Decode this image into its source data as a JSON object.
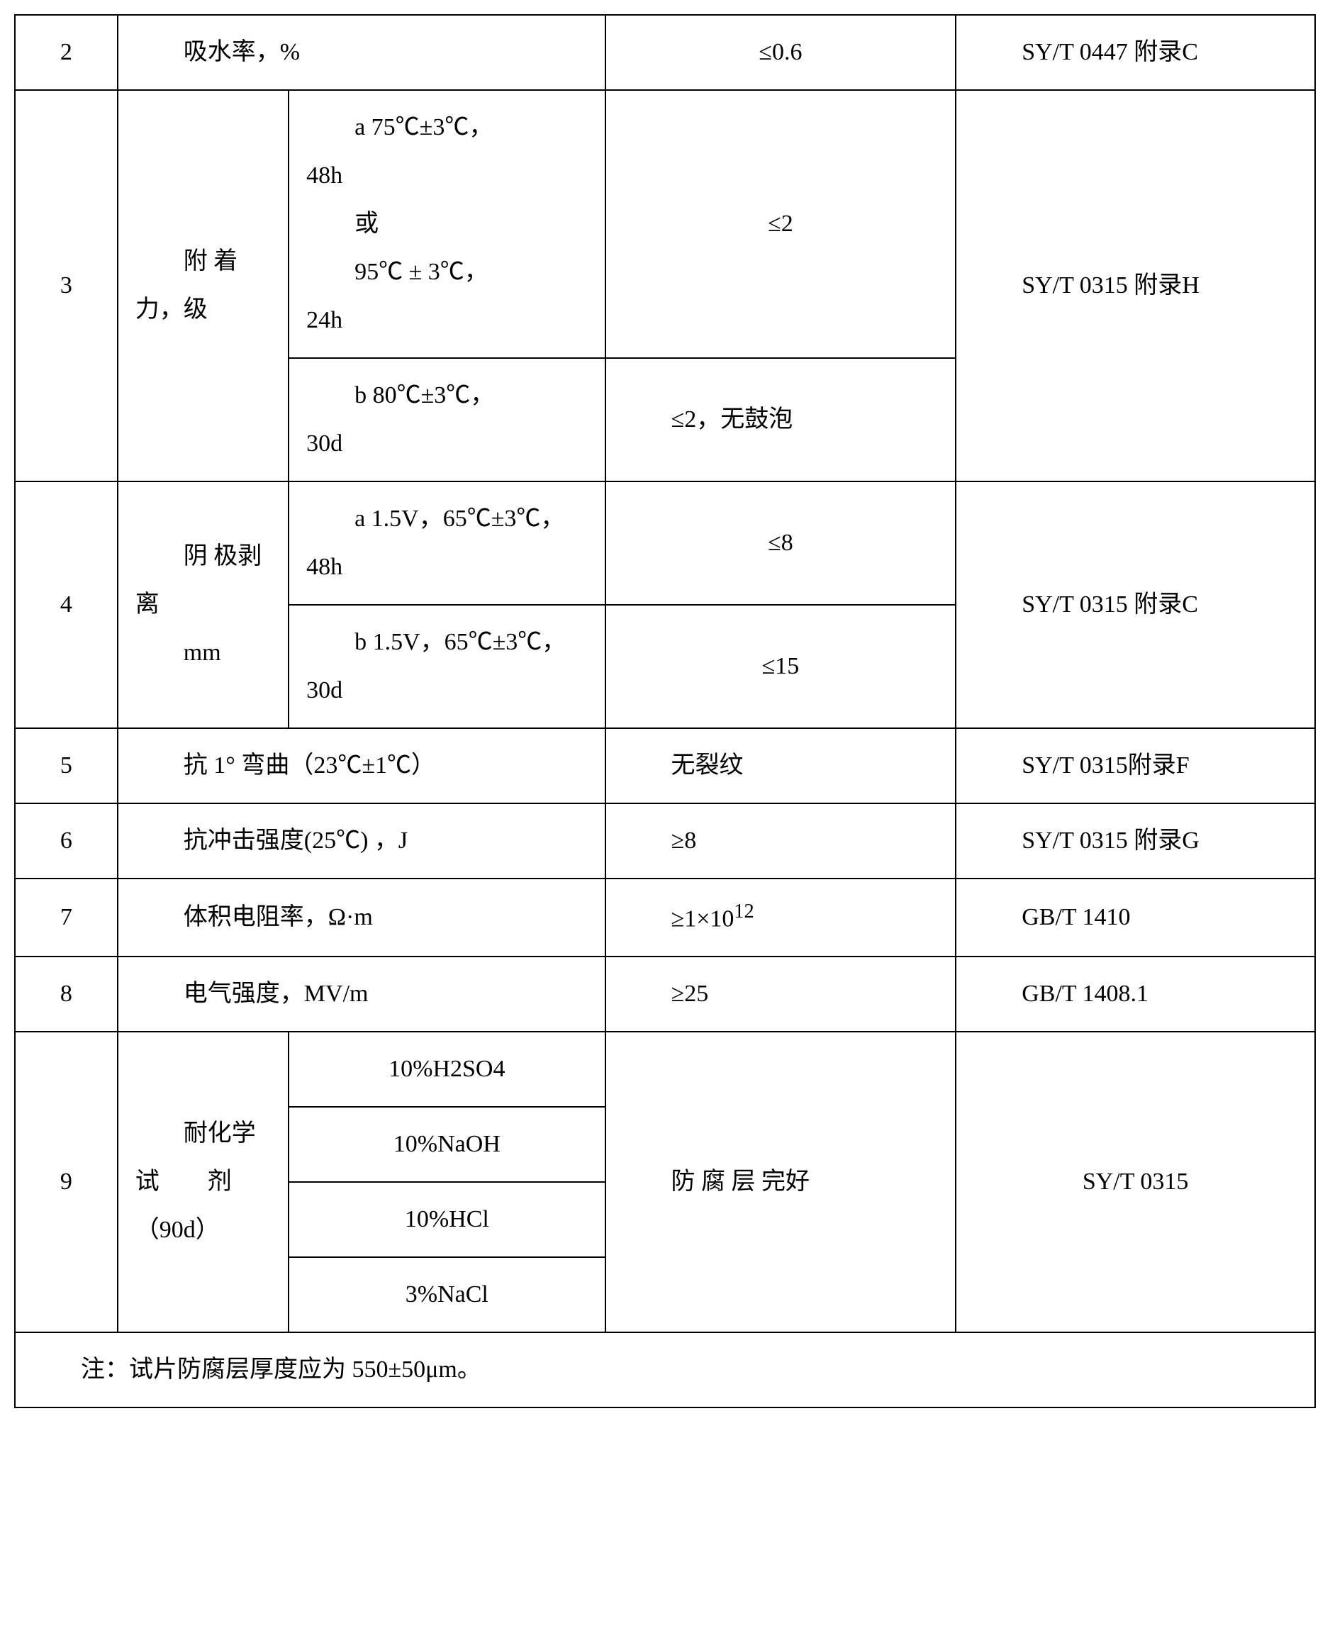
{
  "table": {
    "border_color": "#000000",
    "background_color": "#ffffff",
    "font_family": "SimSun",
    "base_font_size": 34,
    "columns": {
      "num_width": 120,
      "item1_width": 200,
      "item2_width": 370,
      "val_width": 410,
      "std_width": 420
    },
    "rows": [
      {
        "num": "2",
        "item": "吸水率，%",
        "value": "≤0.6",
        "standard": "SY/T 0447 附录C"
      },
      {
        "num": "3",
        "item_a": "附 着力，级",
        "cond_a": "a 75℃±3℃，48h\n或\n95℃±3℃，24h",
        "val_a": "≤2",
        "cond_b": "b 80℃±3℃，30d",
        "val_b": "≤2，无鼓泡",
        "standard": "SY/T 0315 附录H"
      },
      {
        "num": "4",
        "item_a": "阴 极剥离\nmm",
        "cond_a": "a 1.5V，65℃±3℃，48h",
        "val_a": "≤8",
        "cond_b": "b 1.5V，65℃±3℃，30d",
        "val_b": "≤15",
        "standard": "SY/T 0315 附录C"
      },
      {
        "num": "5",
        "item": "抗 1° 弯曲（23℃±1℃）",
        "value": "无裂纹",
        "standard": "SY/T 0315附录F"
      },
      {
        "num": "6",
        "item": "抗冲击强度(25℃) ，J",
        "value": "≥8",
        "standard": "SY/T 0315 附录G"
      },
      {
        "num": "7",
        "item": "体积电阻率，Ω·m",
        "value_html": "≥1×10<sup>12</sup>",
        "value": "≥1×10¹²",
        "standard": "GB/T 1410"
      },
      {
        "num": "8",
        "item": "电气强度，MV/m",
        "value": "≥25",
        "standard": "GB/T 1408.1"
      },
      {
        "num": "9",
        "item_a": "耐化学试　　剂（90d）",
        "chems": [
          "10%H2SO4",
          "10%NaOH",
          "10%HCl",
          "3%NaCl"
        ],
        "value": "防 腐 层 完好",
        "standard": "SY/T 0315"
      }
    ],
    "note": "注：试片防腐层厚度应为 550±50μm。"
  }
}
